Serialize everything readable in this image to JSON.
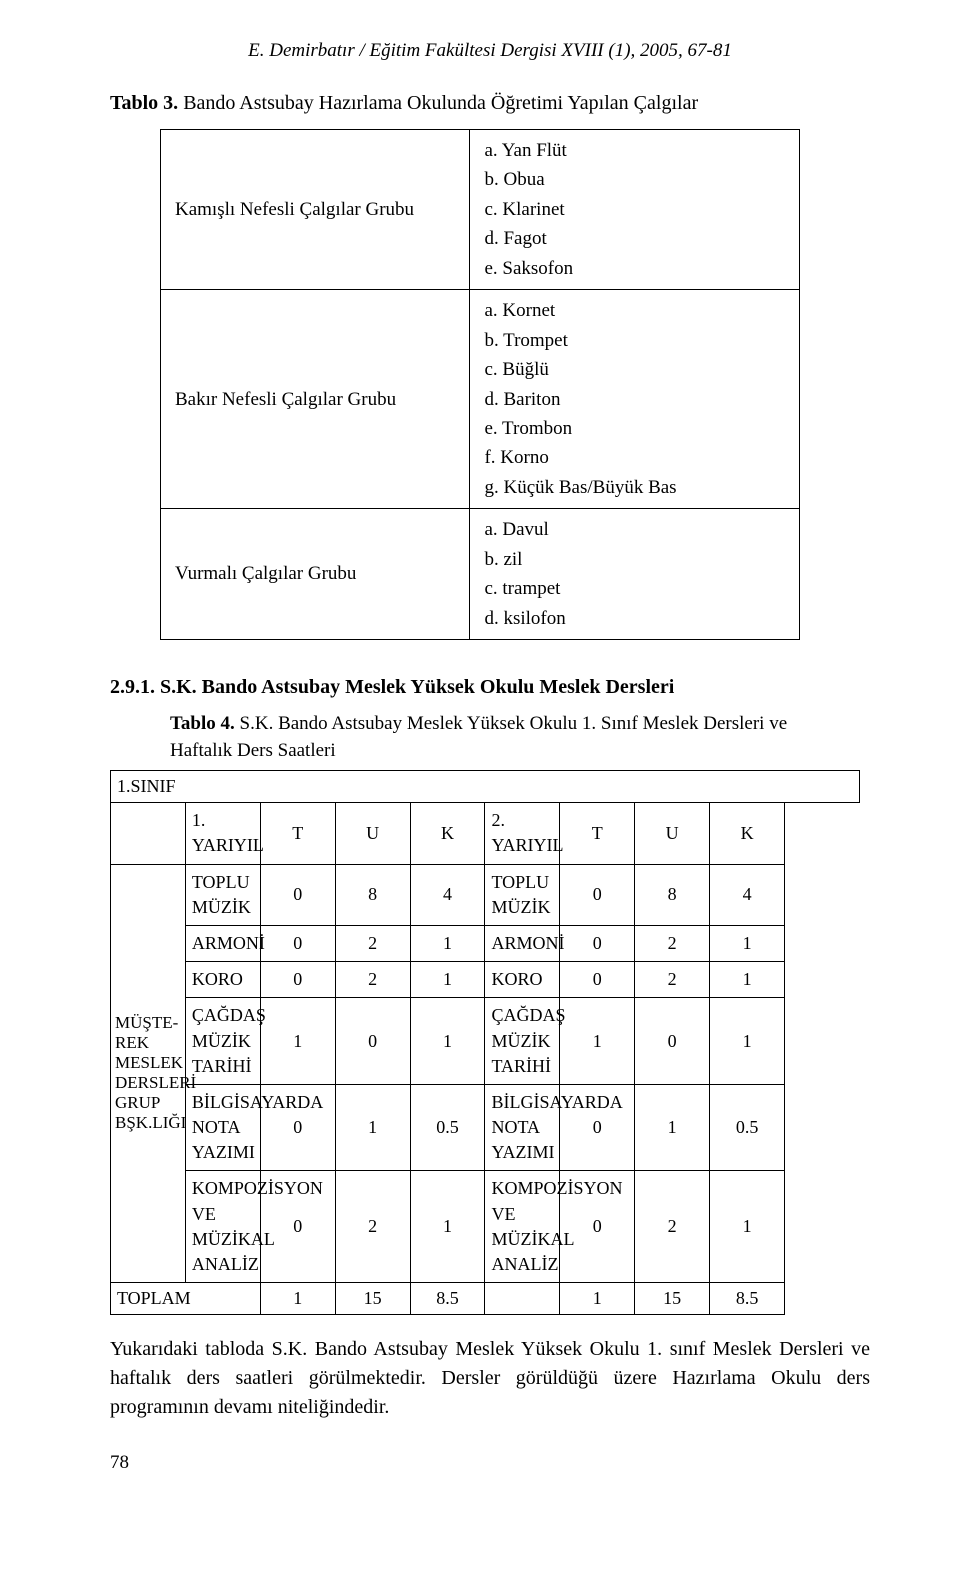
{
  "header": "E. Demirbatır / Eğitim Fakültesi Dergisi XVIII (1), 2005, 67-81",
  "tablo3_title": "Tablo 3. Bando Astsubay Hazırlama Okulunda Öğretimi Yapılan Çalgılar",
  "tablo3": {
    "rows": [
      {
        "left": "Kamışlı Nefesli Çalgılar Grubu",
        "right": "a. Yan Flüt\nb. Obua\nc. Klarinet\nd. Fagot\ne. Saksofon"
      },
      {
        "left": "Bakır Nefesli Çalgılar Grubu",
        "right": "a. Kornet\nb. Trompet\nc. Büğlü\nd. Bariton\ne. Trombon\nf. Korno\ng. Küçük Bas/Büyük Bas"
      },
      {
        "left": "Vurmalı Çalgılar Grubu",
        "right": "a. Davul\nb. zil\nc. trampet\nd. ksilofon"
      }
    ]
  },
  "section_head": "2.9.1. S.K. Bando Astsubay Meslek Yüksek Okulu Meslek Dersleri",
  "tablo4_title_bold": "Tablo 4.",
  "tablo4_title_rest": " S.K. Bando Astsubay Meslek Yüksek Okulu 1. Sınıf Meslek Dersleri ve Haftalık Ders Saatleri",
  "tablo4": {
    "header_sinif": "1.SINIF",
    "yy1": "1. YARIYIL",
    "yy2": "2. YARIYIL",
    "T": "T",
    "U": "U",
    "K": "K",
    "rowcat": "MÜŞTE-REK MESLEK DERSLERİ GRUP BŞK.LIĞI",
    "courses": [
      {
        "l": "TOPLU MÜZİK",
        "t1": "0",
        "u1": "8",
        "k1": "4",
        "r": "TOPLU MÜZİK",
        "t2": "0",
        "u2": "8",
        "k2": "4"
      },
      {
        "l": "ARMONİ",
        "t1": "0",
        "u1": "2",
        "k1": "1",
        "r": "ARMONİ",
        "t2": "0",
        "u2": "2",
        "k2": "1"
      },
      {
        "l": "KORO",
        "t1": "0",
        "u1": "2",
        "k1": "1",
        "r": "KORO",
        "t2": "0",
        "u2": "2",
        "k2": "1"
      },
      {
        "l": "ÇAĞDAŞ MÜZİK TARİHİ",
        "t1": "1",
        "u1": "0",
        "k1": "1",
        "r": "ÇAĞDAŞ MÜZİK TARİHİ",
        "t2": "1",
        "u2": "0",
        "k2": "1"
      },
      {
        "l": "BİLGİSAYARDA NOTA YAZIMI",
        "t1": "0",
        "u1": "1",
        "k1": "0.5",
        "r": "BİLGİSAYARDA NOTA YAZIMI",
        "t2": "0",
        "u2": "1",
        "k2": "0.5"
      },
      {
        "l": "KOMPOZİSYON VE MÜZİKAL ANALİZ",
        "t1": "0",
        "u1": "2",
        "k1": "1",
        "r": "KOMPOZİSYON VE MÜZİKAL ANALİZ",
        "t2": "0",
        "u2": "2",
        "k2": "1"
      }
    ],
    "toplam_label": "TOPLAM",
    "toplam": {
      "t1": "1",
      "u1": "15",
      "k1": "8.5",
      "t2": "1",
      "u2": "15",
      "k2": "8.5"
    }
  },
  "paragraph": "Yukarıdaki tabloda S.K. Bando Astsubay Meslek Yüksek Okulu 1. sınıf Meslek Dersleri ve haftalık ders saatleri görülmektedir. Dersler görüldüğü üzere Hazırlama Okulu ders programının devamı niteliğindedir.",
  "page_number": "78"
}
